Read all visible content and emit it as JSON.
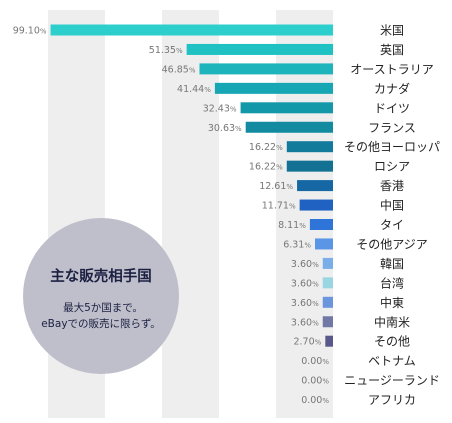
{
  "chart_data": {
    "type": "bar",
    "orientation": "horizontal",
    "axis_max": 100,
    "grid": true,
    "categories": [
      "米国",
      "英国",
      "オーストラリア",
      "カナダ",
      "ドイツ",
      "フランス",
      "その他ヨーロッパ",
      "ロシア",
      "香港",
      "中国",
      "タイ",
      "その他アジア",
      "韓国",
      "台湾",
      "中東",
      "中南米",
      "その他",
      "ベトナム",
      "ニュージーランド",
      "アフリカ"
    ],
    "values": [
      99.1,
      51.35,
      46.85,
      41.44,
      32.43,
      30.63,
      16.22,
      16.22,
      12.61,
      11.71,
      8.11,
      6.31,
      3.6,
      3.6,
      3.6,
      3.6,
      2.7,
      0.0,
      0.0,
      0.0
    ],
    "value_labels": [
      "99.10",
      "51.35",
      "46.85",
      "41.44",
      "32.43",
      "30.63",
      "16.22",
      "16.22",
      "12.61",
      "11.71",
      "8.11",
      "6.31",
      "3.60",
      "3.60",
      "3.60",
      "3.60",
      "2.70",
      "0.00",
      "0.00",
      "0.00"
    ],
    "value_unit": "%",
    "bar_colors": [
      "#2ccfcb",
      "#20c1c3",
      "#1db4bb",
      "#17a6b3",
      "#1398a9",
      "#128aa0",
      "#127a9a",
      "#137293",
      "#1668a4",
      "#1f62c2",
      "#2f74d9",
      "#5b95e6",
      "#79aee8",
      "#9ad6e2",
      "#6b96dd",
      "#7178a6",
      "#58598a",
      "#888888",
      "#888888",
      "#888888"
    ],
    "value_text_color": "#777777",
    "category_text_color": "#222222",
    "grid_band_color": "#eeeeef"
  },
  "annotation": {
    "title": "主な販売相手国",
    "line1": "最大5か国まで。",
    "line2": "eBayでの販売に限らず。",
    "circle_color": "#bfbfcc",
    "text_color": "#1c2040"
  }
}
